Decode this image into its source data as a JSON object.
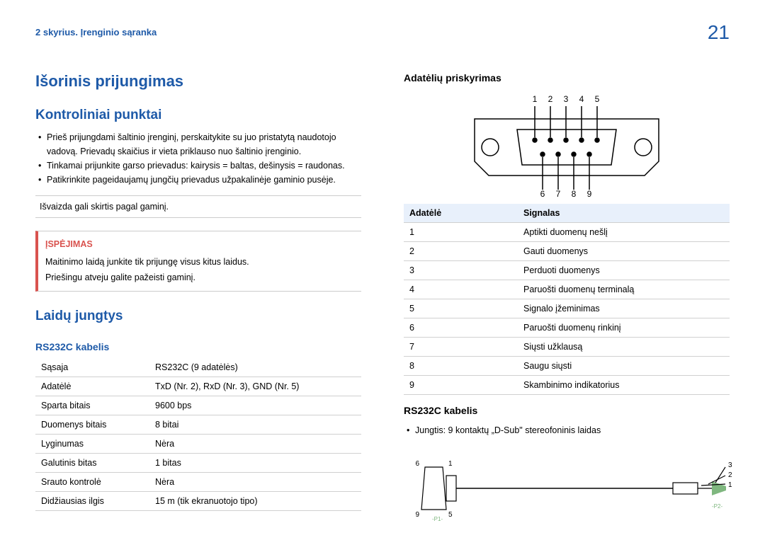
{
  "breadcrumb": "2 skyrius. Įrenginio sąranka",
  "page_number": "21",
  "title": "Išorinis prijungimas",
  "left": {
    "section1": {
      "heading": "Kontroliniai punktai",
      "bullets": [
        "Prieš prijungdami šaltinio įrenginį, perskaitykite su juo pristatytą naudotojo vadovą. Prievadų skaičius ir vieta priklauso nuo šaltinio įrenginio.",
        "Tinkamai prijunkite garso prievadus: kairysis = baltas, dešinysis = raudonas.",
        "Patikrinkite pageidaujamų jungčių prievadus užpakalinėje gaminio pusėje."
      ],
      "note": "Išvaizda gali skirtis pagal gaminį.",
      "warning_title": "ĮSPĖJIMAS",
      "warning_lines": [
        "Maitinimo laidą junkite tik prijungę visus kitus laidus.",
        "Priešingu atveju galite pažeisti gaminį."
      ]
    },
    "section2": {
      "heading": "Laidų jungtys",
      "subheading": "RS232C kabelis",
      "spec_rows": [
        [
          "Sąsaja",
          "RS232C (9 adatėlės)"
        ],
        [
          "Adatėlė",
          "TxD (Nr. 2), RxD (Nr. 3), GND (Nr. 5)"
        ],
        [
          "Sparta bitais",
          "9600 bps"
        ],
        [
          "Duomenys bitais",
          "8 bitai"
        ],
        [
          "Lyginumas",
          "Nėra"
        ],
        [
          "Galutinis bitas",
          "1 bitas"
        ],
        [
          "Srauto kontrolė",
          "Nėra"
        ],
        [
          "Didžiausias ilgis",
          "15 m (tik ekranuotojo tipo)"
        ]
      ]
    }
  },
  "right": {
    "heading1": "Adatėlių priskyrimas",
    "pin_labels_top": [
      "1",
      "2",
      "3",
      "4",
      "5"
    ],
    "pin_labels_bottom": [
      "6",
      "7",
      "8",
      "9"
    ],
    "pin_table": {
      "headers": [
        "Adatėlė",
        "Signalas"
      ],
      "rows": [
        [
          "1",
          "Aptikti duomenų nešlį"
        ],
        [
          "2",
          "Gauti duomenys"
        ],
        [
          "3",
          "Perduoti duomenys"
        ],
        [
          "4",
          "Paruošti duomenų terminalą"
        ],
        [
          "5",
          "Signalo įžeminimas"
        ],
        [
          "6",
          "Paruošti duomenų rinkinį"
        ],
        [
          "7",
          "Siųsti užklausą"
        ],
        [
          "8",
          "Saugu siųsti"
        ],
        [
          "9",
          "Skambinimo indikatorius"
        ]
      ]
    },
    "heading2": "RS232C kabelis",
    "bullet2": "Jungtis: 9 kontaktų „D-Sub\" stereofoninis laidas",
    "cable": {
      "left_labels": [
        "6",
        "1",
        "9",
        "5"
      ],
      "right_labels": [
        "3",
        "2",
        "1"
      ],
      "p1": "-P1-",
      "p2": "-P2-"
    }
  }
}
